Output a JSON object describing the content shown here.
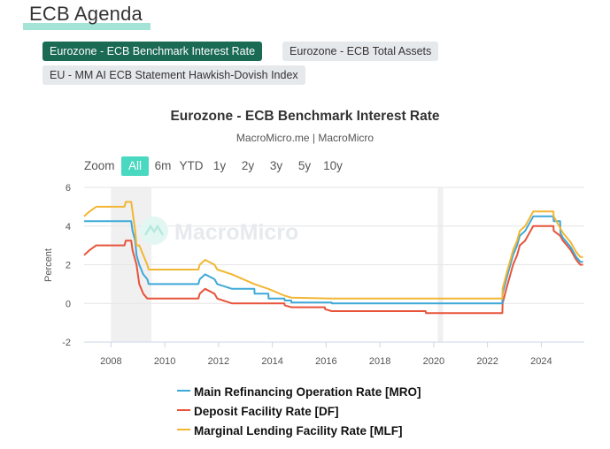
{
  "page": {
    "title": "ECB Agenda"
  },
  "tabs": [
    {
      "label": "Eurozone - ECB Benchmark Interest Rate",
      "active": true
    },
    {
      "label": "Eurozone - ECB Total Assets",
      "active": false
    },
    {
      "label": "EU - MM AI ECB Statement Hawkish-Dovish Index",
      "active": false
    }
  ],
  "chart": {
    "title": "Eurozone - ECB Benchmark Interest Rate",
    "subtitle": "MacroMicro.me | MacroMicro",
    "watermark": "MacroMicro",
    "zoom": {
      "label": "Zoom",
      "options": [
        "All",
        "6m",
        "YTD",
        "1y",
        "2y",
        "3y",
        "5y",
        "10y"
      ],
      "selected": "All"
    }
  },
  "chart_data": {
    "type": "line",
    "title": "Eurozone - ECB Benchmark Interest Rate",
    "ylabel": "Percent",
    "xlabel": "",
    "ylim": [
      -2,
      6
    ],
    "xlim": [
      2007.0,
      2025.6
    ],
    "yticks": [
      "6",
      "4",
      "2",
      "0",
      "-2"
    ],
    "xticks": [
      "2008",
      "2010",
      "2012",
      "2014",
      "2016",
      "2018",
      "2020",
      "2022",
      "2024"
    ],
    "recessions": [
      [
        2008.0,
        2009.5
      ],
      [
        2020.15,
        2020.35
      ]
    ],
    "series": [
      {
        "name": "Main Refinancing Operation Rate [MRO]",
        "color": "#3ea8d8",
        "points": [
          [
            2007.0,
            4.25
          ],
          [
            2008.5,
            4.25
          ],
          [
            2008.75,
            4.25
          ],
          [
            2008.8,
            3.75
          ],
          [
            2008.9,
            3.25
          ],
          [
            2008.95,
            2.5
          ],
          [
            2009.05,
            2.0
          ],
          [
            2009.2,
            1.5
          ],
          [
            2009.35,
            1.25
          ],
          [
            2009.4,
            1.0
          ],
          [
            2011.25,
            1.0
          ],
          [
            2011.3,
            1.25
          ],
          [
            2011.5,
            1.5
          ],
          [
            2011.85,
            1.25
          ],
          [
            2011.95,
            1.0
          ],
          [
            2012.5,
            0.75
          ],
          [
            2013.33,
            0.75
          ],
          [
            2013.34,
            0.5
          ],
          [
            2013.85,
            0.5
          ],
          [
            2013.86,
            0.25
          ],
          [
            2014.45,
            0.25
          ],
          [
            2014.46,
            0.15
          ],
          [
            2014.7,
            0.15
          ],
          [
            2014.71,
            0.05
          ],
          [
            2016.2,
            0.05
          ],
          [
            2016.21,
            0.0
          ],
          [
            2022.55,
            0.0
          ],
          [
            2022.56,
            0.5
          ],
          [
            2022.7,
            1.25
          ],
          [
            2022.85,
            2.0
          ],
          [
            2022.95,
            2.5
          ],
          [
            2023.1,
            3.0
          ],
          [
            2023.2,
            3.5
          ],
          [
            2023.4,
            3.75
          ],
          [
            2023.5,
            4.0
          ],
          [
            2023.7,
            4.5
          ],
          [
            2024.45,
            4.5
          ],
          [
            2024.46,
            4.25
          ],
          [
            2024.7,
            4.25
          ],
          [
            2024.71,
            3.65
          ],
          [
            2024.8,
            3.4
          ],
          [
            2024.95,
            3.15
          ],
          [
            2025.1,
            2.9
          ],
          [
            2025.2,
            2.65
          ],
          [
            2025.3,
            2.4
          ],
          [
            2025.45,
            2.15
          ],
          [
            2025.55,
            2.15
          ]
        ]
      },
      {
        "name": "Deposit Facility Rate [DF]",
        "color": "#e8533a",
        "points": [
          [
            2007.0,
            2.5
          ],
          [
            2007.2,
            2.75
          ],
          [
            2007.45,
            3.0
          ],
          [
            2008.5,
            3.0
          ],
          [
            2008.55,
            3.25
          ],
          [
            2008.75,
            3.25
          ],
          [
            2008.8,
            2.75
          ],
          [
            2008.9,
            2.25
          ],
          [
            2008.95,
            2.0
          ],
          [
            2009.05,
            1.0
          ],
          [
            2009.2,
            0.5
          ],
          [
            2009.35,
            0.25
          ],
          [
            2011.25,
            0.25
          ],
          [
            2011.3,
            0.5
          ],
          [
            2011.5,
            0.75
          ],
          [
            2011.85,
            0.5
          ],
          [
            2011.95,
            0.25
          ],
          [
            2012.5,
            0.0
          ],
          [
            2014.45,
            0.0
          ],
          [
            2014.46,
            -0.1
          ],
          [
            2014.7,
            -0.2
          ],
          [
            2015.95,
            -0.2
          ],
          [
            2015.96,
            -0.3
          ],
          [
            2016.2,
            -0.4
          ],
          [
            2019.7,
            -0.4
          ],
          [
            2019.71,
            -0.5
          ],
          [
            2022.55,
            -0.5
          ],
          [
            2022.56,
            0.0
          ],
          [
            2022.7,
            0.75
          ],
          [
            2022.85,
            1.5
          ],
          [
            2022.95,
            2.0
          ],
          [
            2023.1,
            2.5
          ],
          [
            2023.2,
            3.0
          ],
          [
            2023.4,
            3.25
          ],
          [
            2023.5,
            3.5
          ],
          [
            2023.7,
            4.0
          ],
          [
            2024.45,
            4.0
          ],
          [
            2024.46,
            3.75
          ],
          [
            2024.7,
            3.5
          ],
          [
            2024.8,
            3.25
          ],
          [
            2024.95,
            3.0
          ],
          [
            2025.1,
            2.75
          ],
          [
            2025.2,
            2.5
          ],
          [
            2025.3,
            2.25
          ],
          [
            2025.45,
            2.0
          ],
          [
            2025.55,
            2.0
          ]
        ]
      },
      {
        "name": "Marginal Lending Facility Rate [MLF]",
        "color": "#f2b632",
        "points": [
          [
            2007.0,
            4.5
          ],
          [
            2007.2,
            4.75
          ],
          [
            2007.45,
            5.0
          ],
          [
            2008.5,
            5.0
          ],
          [
            2008.55,
            5.25
          ],
          [
            2008.75,
            5.25
          ],
          [
            2008.8,
            4.75
          ],
          [
            2008.9,
            3.75
          ],
          [
            2008.95,
            3.0
          ],
          [
            2009.05,
            3.0
          ],
          [
            2009.2,
            2.5
          ],
          [
            2009.35,
            2.0
          ],
          [
            2009.4,
            1.75
          ],
          [
            2011.25,
            1.75
          ],
          [
            2011.3,
            2.0
          ],
          [
            2011.5,
            2.25
          ],
          [
            2011.85,
            2.0
          ],
          [
            2011.95,
            1.75
          ],
          [
            2012.5,
            1.5
          ],
          [
            2013.33,
            1.0
          ],
          [
            2013.85,
            0.75
          ],
          [
            2014.45,
            0.4
          ],
          [
            2014.7,
            0.3
          ],
          [
            2016.2,
            0.25
          ],
          [
            2022.55,
            0.25
          ],
          [
            2022.56,
            0.75
          ],
          [
            2022.7,
            1.5
          ],
          [
            2022.85,
            2.25
          ],
          [
            2022.95,
            2.75
          ],
          [
            2023.1,
            3.25
          ],
          [
            2023.2,
            3.75
          ],
          [
            2023.4,
            4.0
          ],
          [
            2023.5,
            4.25
          ],
          [
            2023.7,
            4.75
          ],
          [
            2024.45,
            4.75
          ],
          [
            2024.46,
            4.5
          ],
          [
            2024.7,
            3.9
          ],
          [
            2024.8,
            3.65
          ],
          [
            2024.95,
            3.4
          ],
          [
            2025.1,
            3.15
          ],
          [
            2025.2,
            2.9
          ],
          [
            2025.3,
            2.65
          ],
          [
            2025.45,
            2.4
          ],
          [
            2025.55,
            2.4
          ]
        ]
      }
    ]
  }
}
